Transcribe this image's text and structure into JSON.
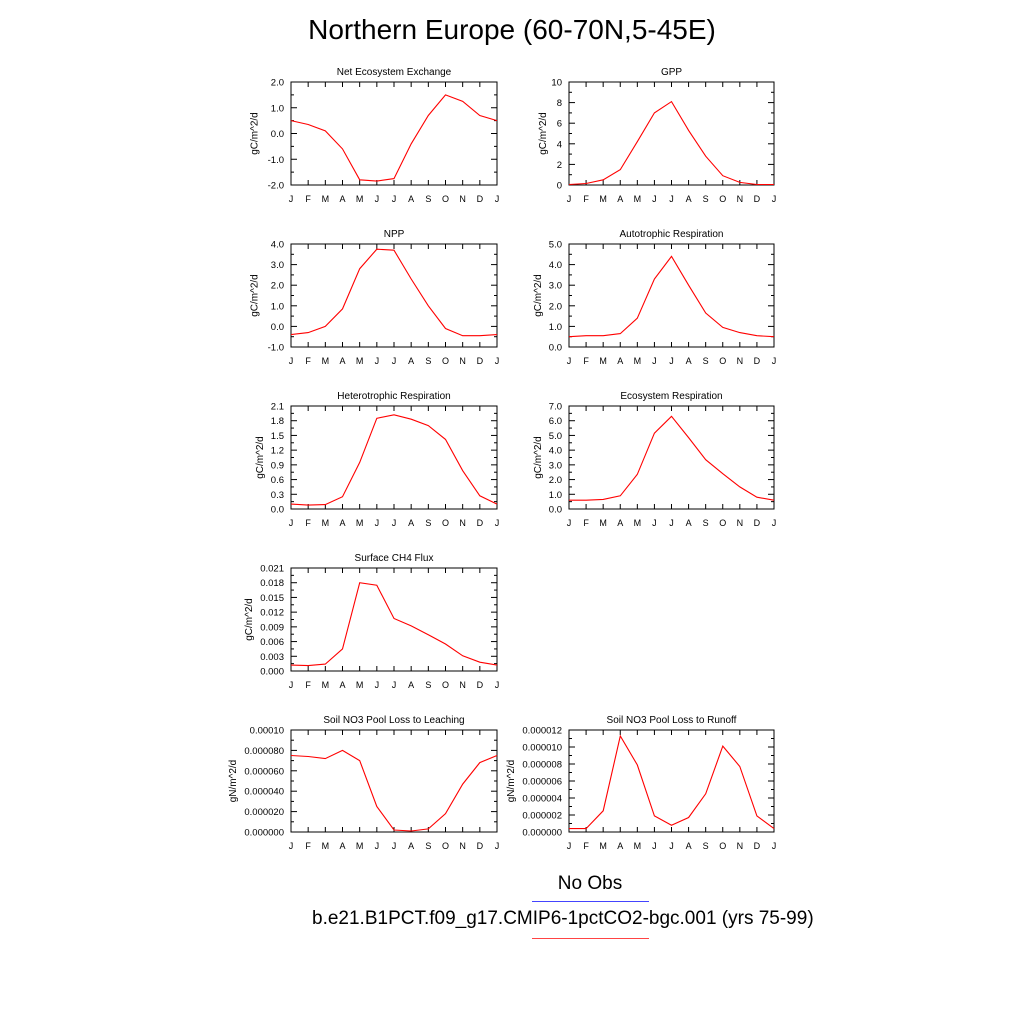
{
  "title": "Northern Europe (60-70N,5-45E)",
  "months": [
    "J",
    "F",
    "M",
    "A",
    "M",
    "J",
    "J",
    "A",
    "S",
    "O",
    "N",
    "D",
    "J"
  ],
  "line_color": "#ff0000",
  "legend": {
    "obs_label": "No Obs",
    "obs_color": "#4444ff",
    "case_label": "b.e21.B1PCT.f09_g17.CMIP6-1pctCO2-bgc.001 (yrs 75-99)",
    "case_color": "#ff4444"
  },
  "chart_data": [
    {
      "type": "line",
      "title": "Net Ecosystem Exchange",
      "ylabel": "gC/m^2/d",
      "ylim": [
        -2.0,
        2.0
      ],
      "yticks": [
        "2.0",
        "1.0",
        "0.0",
        "-1.0",
        "-2.0"
      ],
      "ytick_values": [
        2,
        1,
        0,
        -1,
        -2
      ],
      "values": [
        0.5,
        0.35,
        0.1,
        -0.6,
        -1.8,
        -1.85,
        -1.75,
        -0.4,
        0.7,
        1.5,
        1.25,
        0.7,
        0.5
      ]
    },
    {
      "type": "line",
      "title": "GPP",
      "ylabel": "gC/m^2/d",
      "ylim": [
        0,
        10
      ],
      "yticks": [
        "10",
        "8",
        "6",
        "4",
        "2",
        "0"
      ],
      "ytick_values": [
        10,
        8,
        6,
        4,
        2,
        0
      ],
      "values": [
        0.05,
        0.15,
        0.5,
        1.5,
        4.2,
        7.0,
        8.1,
        5.3,
        2.8,
        0.9,
        0.25,
        0.05,
        0.05
      ]
    },
    {
      "type": "line",
      "title": "NPP",
      "ylabel": "gC/m^2/d",
      "ylim": [
        -1.0,
        4.0
      ],
      "yticks": [
        "4.0",
        "3.0",
        "2.0",
        "1.0",
        "0.0",
        "-1.0"
      ],
      "ytick_values": [
        4,
        3,
        2,
        1,
        0,
        -1
      ],
      "values": [
        -0.4,
        -0.3,
        0.0,
        0.85,
        2.8,
        3.75,
        3.7,
        2.3,
        1.0,
        -0.1,
        -0.45,
        -0.45,
        -0.4
      ]
    },
    {
      "type": "line",
      "title": "Autotrophic Respiration",
      "ylabel": "gC/m^2/d",
      "ylim": [
        0,
        5.0
      ],
      "yticks": [
        "5.0",
        "4.0",
        "3.0",
        "2.0",
        "1.0",
        "0.0"
      ],
      "ytick_values": [
        5,
        4,
        3,
        2,
        1,
        0
      ],
      "values": [
        0.5,
        0.55,
        0.55,
        0.65,
        1.4,
        3.3,
        4.4,
        3.0,
        1.65,
        0.95,
        0.7,
        0.55,
        0.5
      ]
    },
    {
      "type": "line",
      "title": "Heterotrophic Respiration",
      "ylabel": "gC/m^2/d",
      "ylim": [
        0,
        2.1
      ],
      "yticks": [
        "2.1",
        "1.8",
        "1.5",
        "1.2",
        "0.9",
        "0.6",
        "0.3",
        "0.0"
      ],
      "ytick_values": [
        2.1,
        1.8,
        1.5,
        1.2,
        0.9,
        0.6,
        0.3,
        0.0
      ],
      "values": [
        0.1,
        0.08,
        0.09,
        0.25,
        0.95,
        1.85,
        1.92,
        1.83,
        1.7,
        1.42,
        0.78,
        0.27,
        0.1
      ]
    },
    {
      "type": "line",
      "title": "Ecosystem Respiration",
      "ylabel": "gC/m^2/d",
      "ylim": [
        0,
        7.0
      ],
      "yticks": [
        "7.0",
        "6.0",
        "5.0",
        "4.0",
        "3.0",
        "2.0",
        "1.0",
        "0.0"
      ],
      "ytick_values": [
        7,
        6,
        5,
        4,
        3,
        2,
        1,
        0
      ],
      "values": [
        0.6,
        0.6,
        0.65,
        0.9,
        2.35,
        5.15,
        6.3,
        4.85,
        3.35,
        2.4,
        1.5,
        0.8,
        0.6
      ]
    },
    {
      "type": "line",
      "title": "Surface CH4 Flux",
      "ylabel": "gC/m^2/d",
      "ylim": [
        0,
        0.021
      ],
      "yticks": [
        "0.021",
        "0.018",
        "0.015",
        "0.012",
        "0.009",
        "0.006",
        "0.003",
        "0.000"
      ],
      "ytick_values": [
        0.021,
        0.018,
        0.015,
        0.012,
        0.009,
        0.006,
        0.003,
        0.0
      ],
      "values": [
        0.0012,
        0.0011,
        0.0014,
        0.0045,
        0.018,
        0.0175,
        0.0107,
        0.0092,
        0.0074,
        0.0055,
        0.0031,
        0.0018,
        0.0012
      ]
    },
    {
      "type": "line",
      "title": "Soil NO3 Pool Loss to Leaching",
      "ylabel": "gN/m^2/d",
      "ylim": [
        0,
        0.0001
      ],
      "yticks": [
        "0.00010",
        "0.000080",
        "0.000060",
        "0.000040",
        "0.000020",
        "0.000000"
      ],
      "ytick_values": [
        0.0001,
        8e-05,
        6e-05,
        4e-05,
        2e-05,
        0.0
      ],
      "values": [
        7.5e-05,
        7.4e-05,
        7.2e-05,
        8e-05,
        7e-05,
        2.5e-05,
        2e-06,
        1e-06,
        3e-06,
        1.8e-05,
        4.7e-05,
        6.8e-05,
        7.5e-05
      ]
    },
    {
      "type": "line",
      "title": "Soil NO3 Pool Loss to Runoff",
      "ylabel": "gN/m^2/d",
      "ylim": [
        0,
        1.2e-05
      ],
      "yticks": [
        "0.000012",
        "0.000010",
        "0.000008",
        "0.000006",
        "0.000004",
        "0.000002",
        "0.000000"
      ],
      "ytick_values": [
        1.2e-05,
        1e-05,
        8e-06,
        6e-06,
        4e-06,
        2e-06,
        0.0
      ],
      "values": [
        4e-07,
        4e-07,
        2.5e-06,
        1.13e-05,
        7.9e-06,
        1.9e-06,
        8e-07,
        1.7e-06,
        4.5e-06,
        1.01e-05,
        7.7e-06,
        1.9e-06,
        4e-07
      ]
    }
  ]
}
